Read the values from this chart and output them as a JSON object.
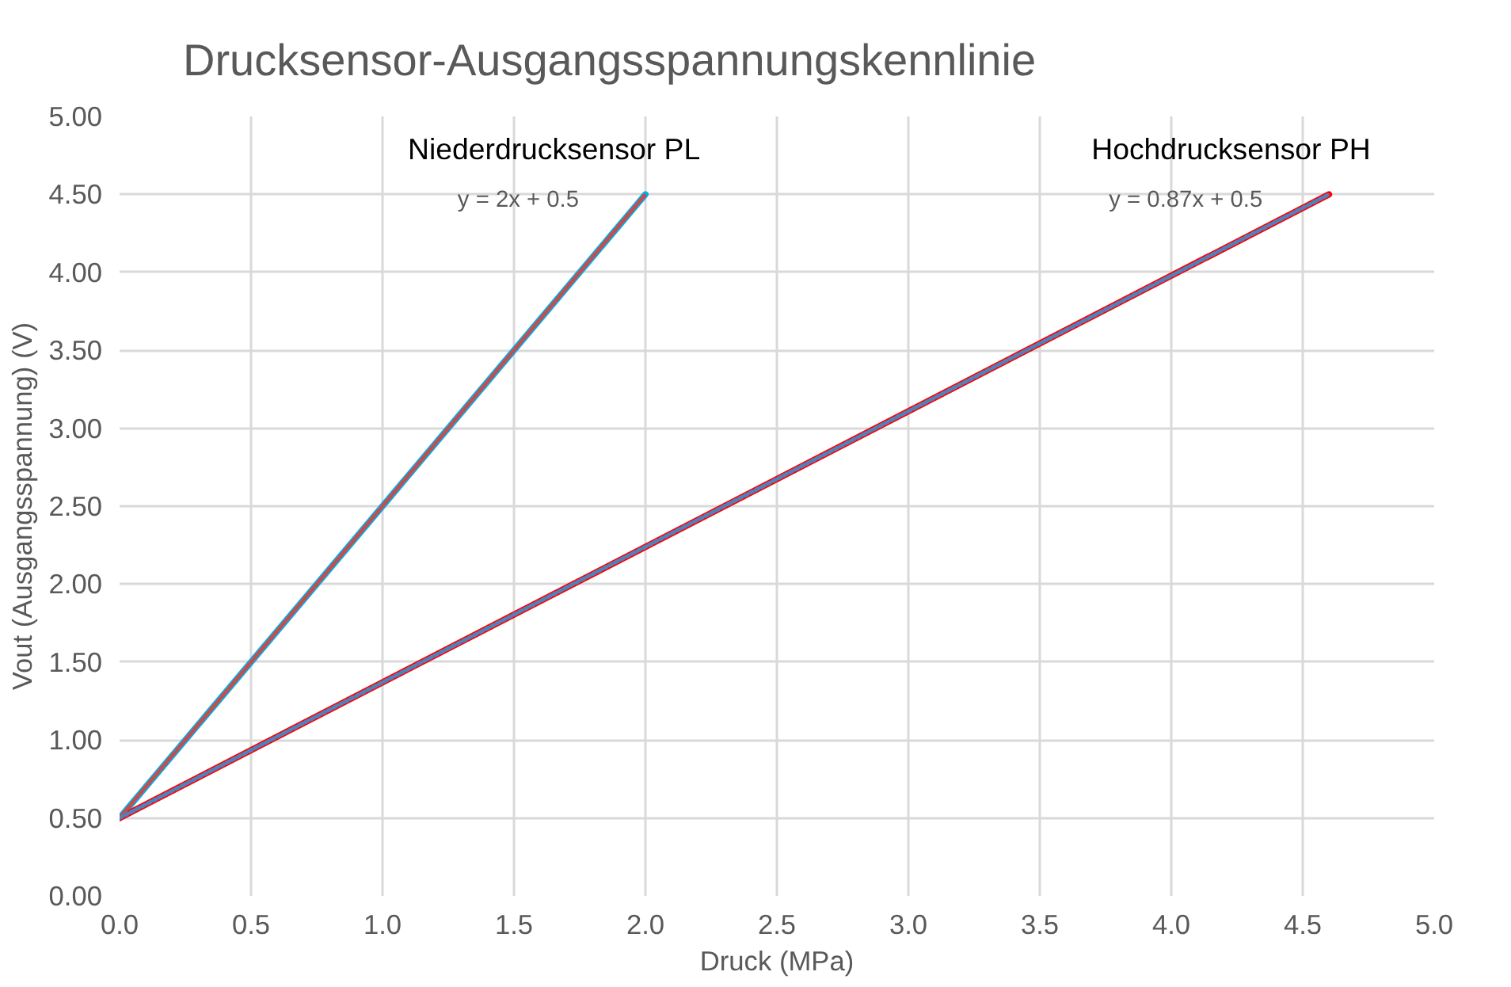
{
  "chart_data": {
    "type": "line",
    "title": "Drucksensor-Ausgangsspannungskennlinie",
    "xlabel": "Druck (MPa)",
    "ylabel": "Vout (Ausgangsspannung) (V)",
    "series": [
      {
        "name": "Niederdrucksensor PL",
        "color": "#00b0f0",
        "x": [
          0,
          2
        ],
        "values": [
          0.5,
          4.5
        ],
        "line_style": "solid"
      },
      {
        "name": "Hochdrucksensor PH",
        "color": "#ff0000",
        "x": [
          0,
          4.6
        ],
        "values": [
          0.5,
          4.5
        ],
        "line_style": "solid"
      },
      {
        "color": "#c0504d",
        "x": [
          0,
          2
        ],
        "values": [
          0.5,
          4.5
        ],
        "line_style": "dotted"
      },
      {
        "color": "#4f81bd",
        "x": [
          0,
          4.6
        ],
        "values": [
          0.5,
          4.5
        ],
        "line_style": "dotted"
      }
    ],
    "annotations": [
      "y = 2x + 0.5",
      "y = 0.87x + 0.5"
    ],
    "xlim": [
      0,
      5
    ],
    "ylim": [
      0,
      5
    ],
    "xticks": [
      {
        "value": 0,
        "label": "0.0"
      },
      {
        "value": 0.5,
        "label": "0.5"
      },
      {
        "value": 1,
        "label": "1.0"
      },
      {
        "value": 1.5,
        "label": "1.5"
      },
      {
        "value": 2,
        "label": "2.0"
      },
      {
        "value": 2.5,
        "label": "2.5"
      },
      {
        "value": 3,
        "label": "3.0"
      },
      {
        "value": 3.5,
        "label": "3.5"
      },
      {
        "value": 4,
        "label": "4.0"
      },
      {
        "value": 4.5,
        "label": "4.5"
      },
      {
        "value": 5,
        "label": "5.0"
      }
    ],
    "yticks": [
      {
        "value": 0,
        "label": "0.00"
      },
      {
        "value": 0.5,
        "label": "0.50"
      },
      {
        "value": 1,
        "label": "1.00"
      },
      {
        "value": 1.5,
        "label": "1.50"
      },
      {
        "value": 2,
        "label": "2.00"
      },
      {
        "value": 2.5,
        "label": "2.50"
      },
      {
        "value": 3,
        "label": "3.00"
      },
      {
        "value": 3.5,
        "label": "3.50"
      },
      {
        "value": 4,
        "label": "4.00"
      },
      {
        "value": 4.5,
        "label": "4.50"
      },
      {
        "value": 5,
        "label": "5.00"
      }
    ],
    "grid": true,
    "marker": "none"
  }
}
